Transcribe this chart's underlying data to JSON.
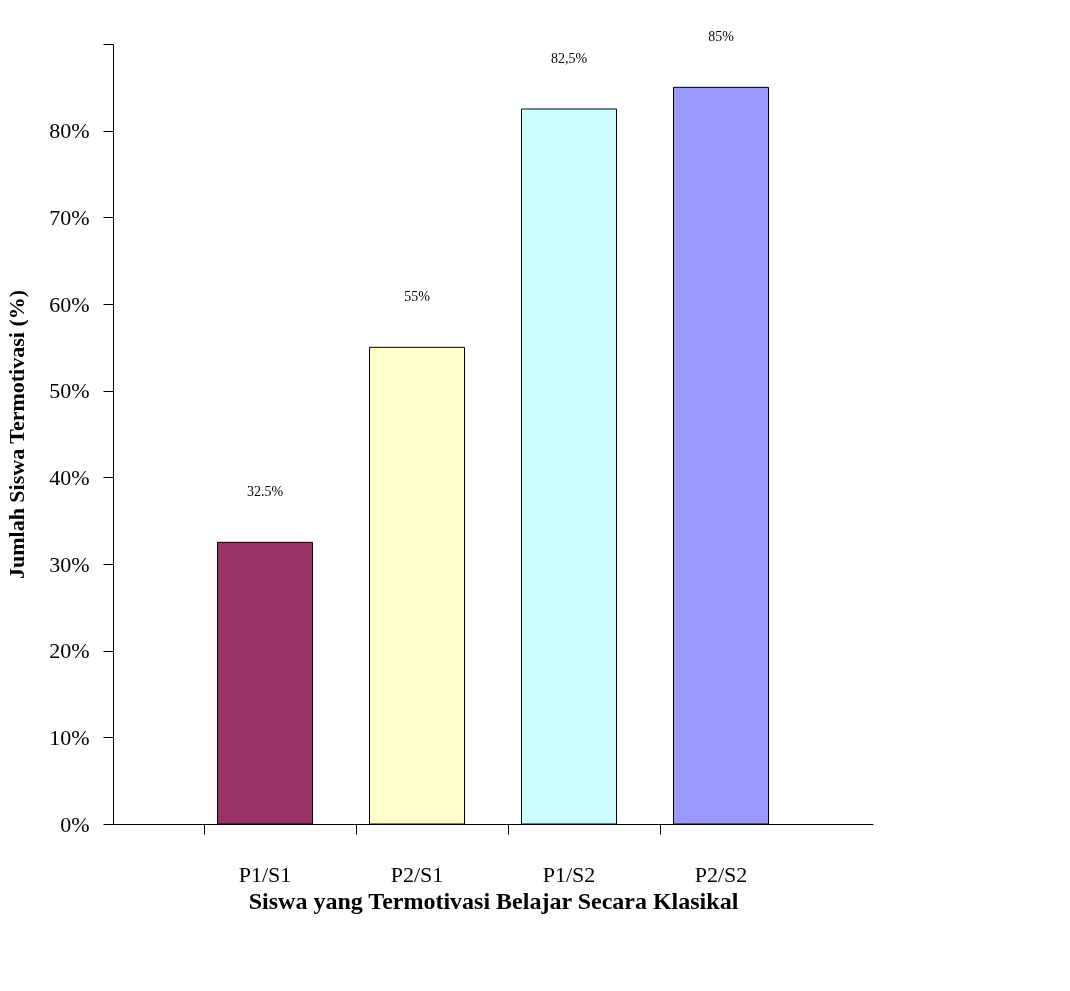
{
  "chart_data": {
    "type": "bar",
    "xlabel": "Siswa yang Termotivasi Belajar Secara Klasikal",
    "ylabel": "Jumlah Siswa Termotivasi (%)",
    "categories": [
      "P1/S1",
      "P2/S1",
      "P1/S2",
      "P2/S2"
    ],
    "values": [
      32.5,
      55,
      82.5,
      85
    ],
    "colors": [
      "#993366",
      "#ffffcc",
      "#ccffff",
      "#9999ff"
    ],
    "value_labels": [
      "32.5%",
      "55%",
      "82,5%",
      "85%"
    ],
    "ylim": [
      0,
      90
    ],
    "yticks": [
      {
        "value": 0,
        "label": "0%"
      },
      {
        "value": 10,
        "label": "10%"
      },
      {
        "value": 20,
        "label": "20%"
      },
      {
        "value": 30,
        "label": "30%"
      },
      {
        "value": 40,
        "label": "40%"
      },
      {
        "value": 50,
        "label": "50%"
      },
      {
        "value": 60,
        "label": "60%"
      },
      {
        "value": 70,
        "label": "70%"
      },
      {
        "value": 80,
        "label": "80%"
      },
      {
        "value": 90,
        "label": null
      }
    ],
    "grid": false
  }
}
